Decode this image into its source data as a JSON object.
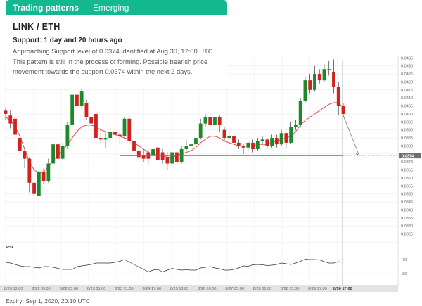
{
  "tabs": [
    {
      "label": "Trading patterns",
      "active": true
    },
    {
      "label": "Emerging",
      "active": false
    }
  ],
  "pair": "LINK / ETH",
  "support_line": "Support: 1 day and 20 hours ago",
  "description": "Approaching Support level of 0.0374 identified at Aug 30, 17:00 UTC. This pattern is still in the process of forming. Possible bearish price movement towards the support 0.0374 within the next 2 days.",
  "expiry": "Expiry: Sep 1, 2020, 20:10 UTC",
  "colors": {
    "accent": "#14b890",
    "bull": "#1b8a2a",
    "bear": "#d41f1f",
    "ma": "#e23b3b",
    "support": "#2e9e3c"
  },
  "chart_data": {
    "type": "candlestick",
    "ylim": [
      0.032,
      0.0436
    ],
    "y_ticks": [
      "0.0435",
      "0.0430",
      "0.0425",
      "0.0420",
      "0.0415",
      "0.0410",
      "0.0405",
      "0.0400",
      "0.0395",
      "0.0390",
      "0.0385",
      "0.0380",
      "0.0375",
      "0.0370",
      "0.0365",
      "0.0360",
      "0.0355",
      "0.0350",
      "0.0345",
      "0.0340",
      "0.0335",
      "0.0330",
      "0.0325"
    ],
    "y_tick_values": [
      0.0435,
      0.043,
      0.0425,
      0.042,
      0.0415,
      0.041,
      0.0405,
      0.04,
      0.0395,
      0.039,
      0.0385,
      0.038,
      0.0375,
      0.037,
      0.0365,
      0.036,
      0.0355,
      0.035,
      0.0345,
      0.034,
      0.0335,
      0.033,
      0.0325
    ],
    "x_labels": [
      "8/20 13:00",
      "8/21 09:00",
      "8/22 05:00",
      "8/23 01:00",
      "8/23 21:00",
      "8/24 17:00",
      "8/25 13:00",
      "8/26 09:00",
      "8/27 05:00",
      "8/28 01:00",
      "8/28 21:00",
      "8/29 17:00",
      "8/30 17:00"
    ],
    "support_level": 0.0374,
    "support_label": "0.0374",
    "current_label": "0.0400",
    "rsi_label": "RSI",
    "rsi_levels": [
      "70",
      "30"
    ],
    "candles": [
      [
        0.0402,
        0.04,
        0.0404,
        0.0396
      ],
      [
        0.0399,
        0.0394,
        0.0402,
        0.0391
      ],
      [
        0.0397,
        0.0387,
        0.0399,
        0.0386
      ],
      [
        0.0385,
        0.0377,
        0.0389,
        0.0374
      ],
      [
        0.0377,
        0.0372,
        0.0379,
        0.0366
      ],
      [
        0.0372,
        0.0357,
        0.0373,
        0.0351
      ],
      [
        0.0357,
        0.035,
        0.0361,
        0.0347
      ],
      [
        0.0349,
        0.0364,
        0.0366,
        0.033
      ],
      [
        0.0364,
        0.0358,
        0.0366,
        0.0356
      ],
      [
        0.0358,
        0.0369,
        0.0372,
        0.0357
      ],
      [
        0.0369,
        0.0381,
        0.0382,
        0.0368
      ],
      [
        0.0381,
        0.0372,
        0.0383,
        0.037
      ],
      [
        0.0372,
        0.038,
        0.0382,
        0.0371
      ],
      [
        0.038,
        0.0393,
        0.0395,
        0.0378
      ],
      [
        0.0393,
        0.0412,
        0.0414,
        0.039
      ],
      [
        0.0412,
        0.0405,
        0.0419,
        0.0403
      ],
      [
        0.0405,
        0.0414,
        0.0416,
        0.0403
      ],
      [
        0.0407,
        0.0398,
        0.0409,
        0.0396
      ],
      [
        0.0398,
        0.0394,
        0.04,
        0.0392
      ],
      [
        0.04,
        0.0385,
        0.0402,
        0.0383
      ],
      [
        0.0385,
        0.0384,
        0.0391,
        0.0382
      ],
      [
        0.0384,
        0.0385,
        0.0389,
        0.0379
      ],
      [
        0.0385,
        0.0389,
        0.0391,
        0.0383
      ],
      [
        0.0389,
        0.0387,
        0.0392,
        0.0385
      ],
      [
        0.0387,
        0.0386,
        0.0389,
        0.0381
      ],
      [
        0.0386,
        0.0397,
        0.0398,
        0.0385
      ],
      [
        0.0397,
        0.0383,
        0.0399,
        0.0381
      ],
      [
        0.0383,
        0.0377,
        0.0385,
        0.0376
      ],
      [
        0.0377,
        0.0373,
        0.038,
        0.0371
      ],
      [
        0.0374,
        0.0372,
        0.0378,
        0.037
      ],
      [
        0.0376,
        0.0372,
        0.0378,
        0.0369
      ],
      [
        0.0374,
        0.0378,
        0.038,
        0.0373
      ],
      [
        0.0379,
        0.0371,
        0.0382,
        0.0368
      ],
      [
        0.0376,
        0.0371,
        0.0378,
        0.0369
      ],
      [
        0.0373,
        0.0369,
        0.0376,
        0.0365
      ],
      [
        0.0369,
        0.0376,
        0.0381,
        0.0368
      ],
      [
        0.0376,
        0.037,
        0.0379,
        0.0368
      ],
      [
        0.037,
        0.0378,
        0.038,
        0.0369
      ],
      [
        0.0378,
        0.038,
        0.0384,
        0.0377
      ],
      [
        0.038,
        0.0381,
        0.0387,
        0.0377
      ],
      [
        0.0381,
        0.0385,
        0.0388,
        0.038
      ],
      [
        0.0385,
        0.0394,
        0.0397,
        0.0384
      ],
      [
        0.0394,
        0.0398,
        0.04,
        0.0392
      ],
      [
        0.0398,
        0.0393,
        0.0401,
        0.039
      ],
      [
        0.0393,
        0.0398,
        0.04,
        0.0391
      ],
      [
        0.0398,
        0.0393,
        0.0399,
        0.0389
      ],
      [
        0.039,
        0.0385,
        0.0392,
        0.0383
      ],
      [
        0.0385,
        0.0386,
        0.0389,
        0.0384
      ],
      [
        0.0386,
        0.0382,
        0.0388,
        0.0378
      ],
      [
        0.0382,
        0.038,
        0.0384,
        0.0378
      ],
      [
        0.038,
        0.0379,
        0.0381,
        0.0375
      ],
      [
        0.0379,
        0.0382,
        0.0383,
        0.0377
      ],
      [
        0.0382,
        0.0378,
        0.0384,
        0.0376
      ],
      [
        0.0378,
        0.0383,
        0.0385,
        0.0377
      ],
      [
        0.0383,
        0.0384,
        0.0386,
        0.0381
      ],
      [
        0.0384,
        0.038,
        0.0385,
        0.0378
      ],
      [
        0.038,
        0.0385,
        0.0387,
        0.0379
      ],
      [
        0.0385,
        0.0381,
        0.0387,
        0.0379
      ],
      [
        0.0381,
        0.0388,
        0.039,
        0.038
      ],
      [
        0.0388,
        0.0382,
        0.0389,
        0.0379
      ],
      [
        0.0382,
        0.0392,
        0.0395,
        0.0381
      ],
      [
        0.0392,
        0.0393,
        0.0396,
        0.039
      ],
      [
        0.0393,
        0.0408,
        0.041,
        0.0392
      ],
      [
        0.0408,
        0.0421,
        0.0423,
        0.0407
      ],
      [
        0.0421,
        0.0415,
        0.0425,
        0.0413
      ],
      [
        0.0415,
        0.0425,
        0.043,
        0.0414
      ],
      [
        0.0425,
        0.0421,
        0.0428,
        0.0419
      ],
      [
        0.0421,
        0.0428,
        0.0431,
        0.042
      ],
      [
        0.0428,
        0.0428,
        0.0433,
        0.0424
      ],
      [
        0.0426,
        0.0417,
        0.0434,
        0.0413
      ],
      [
        0.0417,
        0.0405,
        0.042,
        0.0399
      ],
      [
        0.0405,
        0.04,
        0.0407,
        0.0398
      ]
    ],
    "ma_series": [
      0.0398,
      0.0396,
      0.0392,
      0.0386,
      0.0378,
      0.037,
      0.0365,
      0.0363,
      0.0364,
      0.0367,
      0.0371,
      0.0374,
      0.0377,
      0.0381,
      0.0385,
      0.0389,
      0.0392,
      0.0393,
      0.0393,
      0.0392,
      0.039,
      0.0389,
      0.0388,
      0.0387,
      0.0386,
      0.0385,
      0.0384,
      0.0382,
      0.038,
      0.0378,
      0.0376,
      0.0375,
      0.0374,
      0.0374,
      0.0373,
      0.0373,
      0.0374,
      0.0375,
      0.0376,
      0.0377,
      0.0379,
      0.0382,
      0.0384,
      0.0386,
      0.0386,
      0.0385,
      0.0383,
      0.0382,
      0.0381,
      0.038,
      0.038,
      0.038,
      0.038,
      0.0381,
      0.0381,
      0.0381,
      0.0382,
      0.0383,
      0.0384,
      0.0385,
      0.0386,
      0.0389,
      0.0393,
      0.0396,
      0.0398,
      0.04,
      0.0402,
      0.0404,
      0.0406,
      0.0407,
      0.0407,
      0.0404
    ],
    "rsi_ylim": [
      0,
      100
    ],
    "rsi_series": [
      62,
      60,
      56,
      52,
      50,
      50,
      48,
      46,
      50,
      50,
      48,
      45,
      42,
      42,
      42,
      50,
      52,
      54,
      56,
      60,
      60,
      60,
      60,
      62,
      65,
      70,
      63,
      56,
      49,
      42,
      35,
      40,
      42,
      35,
      40,
      45,
      42,
      40,
      41,
      40,
      40,
      46,
      48,
      50,
      46,
      44,
      40,
      40,
      42,
      46,
      52,
      51,
      55,
      56,
      55,
      53,
      54,
      56,
      60,
      58,
      56,
      60,
      65,
      71,
      70,
      70,
      69,
      64,
      60,
      60,
      64,
      62
    ]
  }
}
